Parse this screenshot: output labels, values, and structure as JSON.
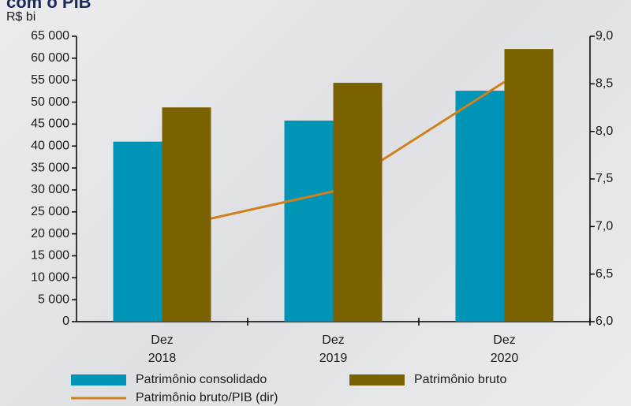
{
  "chart_data": {
    "type": "bar",
    "title": "com o PIB",
    "y_axis_label": "R$ bi",
    "categories": [
      [
        "Dez",
        "2018"
      ],
      [
        "Dez",
        "2019"
      ],
      [
        "Dez",
        "2020"
      ]
    ],
    "series": [
      {
        "name": "Patrimônio consolidado",
        "color": "#0095b6",
        "values": [
          41000,
          45800,
          52600
        ]
      },
      {
        "name": "Patrimônio bruto",
        "color": "#7a6200",
        "values": [
          48800,
          54400,
          62100
        ]
      },
      {
        "name": "Patrimônio bruto/PIB (dir)",
        "color": "#d2801e",
        "type": "line",
        "axis": "y2",
        "values": [
          6.97,
          7.37,
          8.52
        ]
      }
    ],
    "ylim": [
      0,
      65000
    ],
    "yticks": [
      0,
      {
        "value": 5000,
        "label": "5 000"
      },
      {
        "value": 10000,
        "label": "10 000"
      },
      {
        "value": 15000,
        "label": "15 000"
      },
      {
        "value": 20000,
        "label": "20 000"
      },
      {
        "value": 25000,
        "label": "25 000"
      },
      {
        "value": 30000,
        "label": "30 000"
      },
      {
        "value": 35000,
        "label": "35 000"
      },
      {
        "value": 40000,
        "label": "40 000"
      },
      {
        "value": 45000,
        "label": "45 000"
      },
      {
        "value": 50000,
        "label": "50 000"
      },
      {
        "value": 55000,
        "label": "55 000"
      },
      {
        "value": 60000,
        "label": "60 000"
      },
      {
        "value": 65000,
        "label": "65 000"
      }
    ],
    "y2lim": [
      6,
      9
    ],
    "y2ticks": [
      {
        "value": 6,
        "label": "6,0"
      },
      {
        "value": 6.5,
        "label": "6,5"
      },
      {
        "value": 7,
        "label": "7,0"
      },
      {
        "value": 7.5,
        "label": "7,5"
      },
      {
        "value": 8,
        "label": "8,0"
      },
      {
        "value": 8.5,
        "label": "8,5"
      },
      {
        "value": 9,
        "label": "9,0"
      }
    ]
  }
}
